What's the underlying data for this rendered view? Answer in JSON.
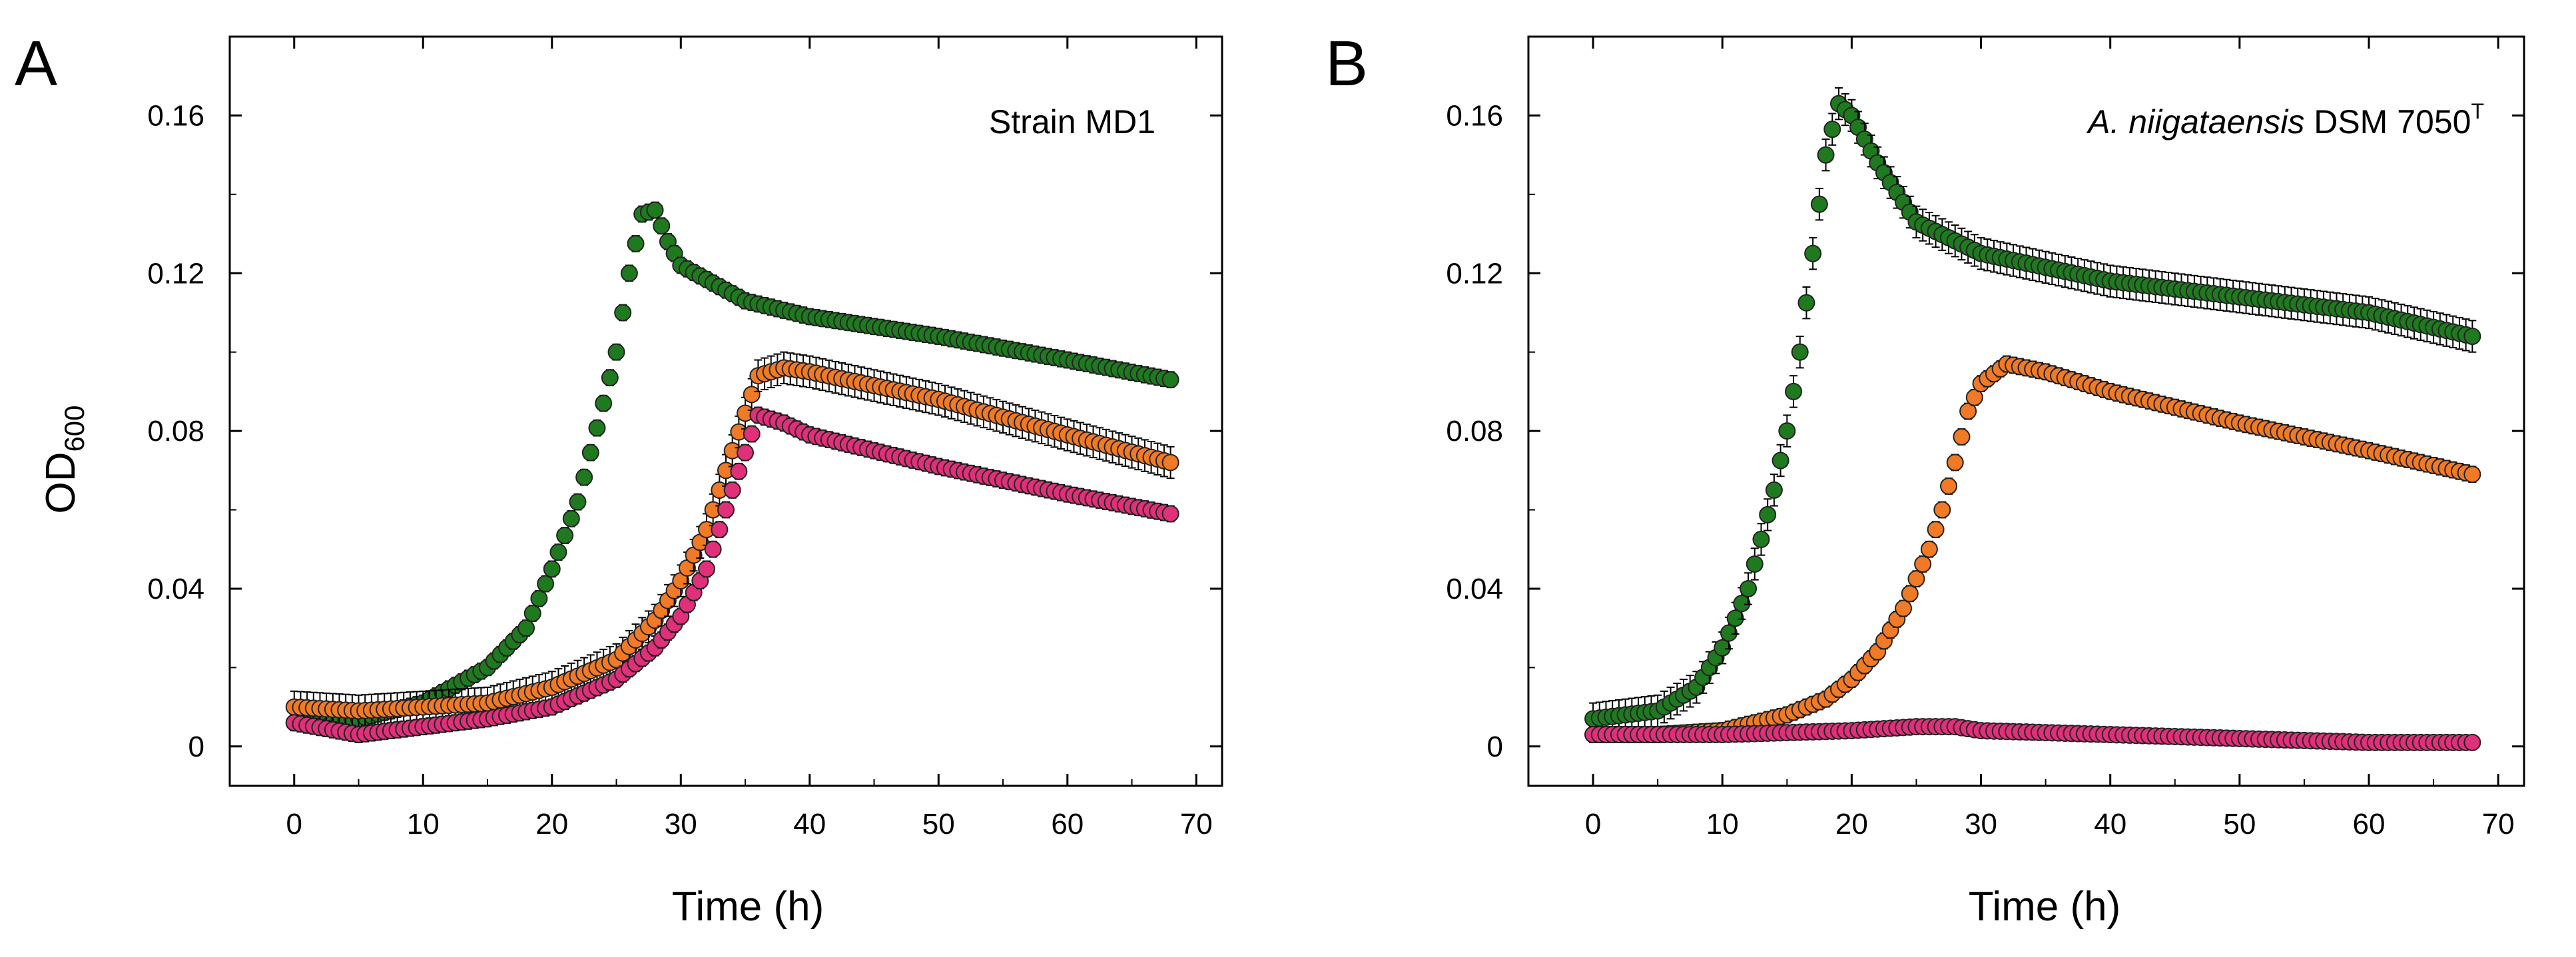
{
  "figure": {
    "panels": [
      "A",
      "B"
    ],
    "ylabel": "OD",
    "ylabel_sub": "600",
    "xlabel": "Time (h)"
  },
  "colors": {
    "green": "#1f7a1f",
    "orange": "#f07a26",
    "pink": "#e0307a"
  },
  "chart_data": [
    {
      "type": "scatter",
      "panel": "A",
      "annotation": "Strain MD1",
      "xlabel": "Time (h)",
      "ylabel": "OD600",
      "xlim": [
        -5,
        72
      ],
      "ylim": [
        -0.01,
        0.18
      ],
      "x_ticks": [
        0,
        10,
        20,
        30,
        40,
        50,
        60,
        70
      ],
      "y_ticks": [
        0,
        0.04,
        0.08,
        0.12,
        0.16
      ],
      "y_tick_labels": [
        "0",
        "0.04",
        "0.08",
        "0.12",
        "0.16"
      ],
      "series": [
        {
          "name": "green",
          "color": "#1f7a1f",
          "points": [
            [
              0,
              0.006
            ],
            [
              5,
              0.007
            ],
            [
              10,
              0.011
            ],
            [
              15,
              0.02
            ],
            [
              18,
              0.03
            ],
            [
              20,
              0.045
            ],
            [
              22,
              0.062
            ],
            [
              24,
              0.087
            ],
            [
              25,
              0.1
            ],
            [
              26,
              0.12
            ],
            [
              27,
              0.135
            ],
            [
              28,
              0.136
            ],
            [
              29,
              0.128
            ],
            [
              30,
              0.122
            ],
            [
              35,
              0.113
            ],
            [
              40,
              0.109
            ],
            [
              50,
              0.104
            ],
            [
              60,
              0.098
            ],
            [
              68,
              0.093
            ]
          ],
          "err": 0.002
        },
        {
          "name": "orange",
          "color": "#f07a26",
          "points": [
            [
              0,
              0.01
            ],
            [
              5,
              0.009
            ],
            [
              10,
              0.01
            ],
            [
              15,
              0.011
            ],
            [
              20,
              0.015
            ],
            [
              25,
              0.022
            ],
            [
              28,
              0.032
            ],
            [
              30,
              0.042
            ],
            [
              32,
              0.055
            ],
            [
              34,
              0.075
            ],
            [
              36,
              0.094
            ],
            [
              38,
              0.096
            ],
            [
              40,
              0.095
            ],
            [
              50,
              0.088
            ],
            [
              60,
              0.079
            ],
            [
              68,
              0.072
            ]
          ],
          "err": 0.004
        },
        {
          "name": "pink",
          "color": "#e0307a",
          "points": [
            [
              0,
              0.006
            ],
            [
              5,
              0.003
            ],
            [
              10,
              0.005
            ],
            [
              15,
              0.007
            ],
            [
              20,
              0.01
            ],
            [
              25,
              0.017
            ],
            [
              28,
              0.025
            ],
            [
              30,
              0.033
            ],
            [
              32,
              0.045
            ],
            [
              34,
              0.065
            ],
            [
              36,
              0.084
            ],
            [
              38,
              0.082
            ],
            [
              40,
              0.079
            ],
            [
              50,
              0.071
            ],
            [
              60,
              0.064
            ],
            [
              68,
              0.059
            ]
          ],
          "err": 0.002
        }
      ]
    },
    {
      "type": "scatter",
      "panel": "B",
      "annotation_italic": "A. niigataensis",
      "annotation_rest": " DSM 7050",
      "annotation_sup": "T",
      "xlabel": "Time (h)",
      "ylabel": "OD600",
      "xlim": [
        -5,
        72
      ],
      "ylim": [
        -0.01,
        0.18
      ],
      "x_ticks": [
        0,
        10,
        20,
        30,
        40,
        50,
        60,
        70
      ],
      "y_ticks": [
        0,
        0.04,
        0.08,
        0.12,
        0.16
      ],
      "y_tick_labels": [
        "0",
        "0.04",
        "0.08",
        "0.12",
        "0.16"
      ],
      "series": [
        {
          "name": "green",
          "color": "#1f7a1f",
          "points": [
            [
              0,
              0.007
            ],
            [
              5,
              0.009
            ],
            [
              8,
              0.015
            ],
            [
              10,
              0.025
            ],
            [
              12,
              0.04
            ],
            [
              14,
              0.065
            ],
            [
              15,
              0.08
            ],
            [
              16,
              0.1
            ],
            [
              17,
              0.125
            ],
            [
              18,
              0.15
            ],
            [
              19,
              0.163
            ],
            [
              20,
              0.16
            ],
            [
              22,
              0.148
            ],
            [
              25,
              0.133
            ],
            [
              30,
              0.125
            ],
            [
              40,
              0.118
            ],
            [
              50,
              0.114
            ],
            [
              60,
              0.11
            ],
            [
              68,
              0.104
            ]
          ],
          "err": 0.004
        },
        {
          "name": "orange",
          "color": "#f07a26",
          "points": [
            [
              0,
              0.003
            ],
            [
              5,
              0.003
            ],
            [
              10,
              0.004
            ],
            [
              15,
              0.008
            ],
            [
              18,
              0.012
            ],
            [
              20,
              0.017
            ],
            [
              22,
              0.024
            ],
            [
              24,
              0.035
            ],
            [
              26,
              0.05
            ],
            [
              27,
              0.06
            ],
            [
              28,
              0.072
            ],
            [
              29,
              0.085
            ],
            [
              30,
              0.092
            ],
            [
              32,
              0.097
            ],
            [
              35,
              0.095
            ],
            [
              40,
              0.09
            ],
            [
              50,
              0.082
            ],
            [
              60,
              0.075
            ],
            [
              68,
              0.069
            ]
          ],
          "err": 0.002
        },
        {
          "name": "pink",
          "color": "#e0307a",
          "points": [
            [
              0,
              0.003
            ],
            [
              10,
              0.003
            ],
            [
              20,
              0.004
            ],
            [
              25,
              0.005
            ],
            [
              28,
              0.005
            ],
            [
              30,
              0.004
            ],
            [
              40,
              0.003
            ],
            [
              50,
              0.002
            ],
            [
              60,
              0.001
            ],
            [
              68,
              0.001
            ]
          ],
          "err": 0.001
        }
      ]
    }
  ]
}
